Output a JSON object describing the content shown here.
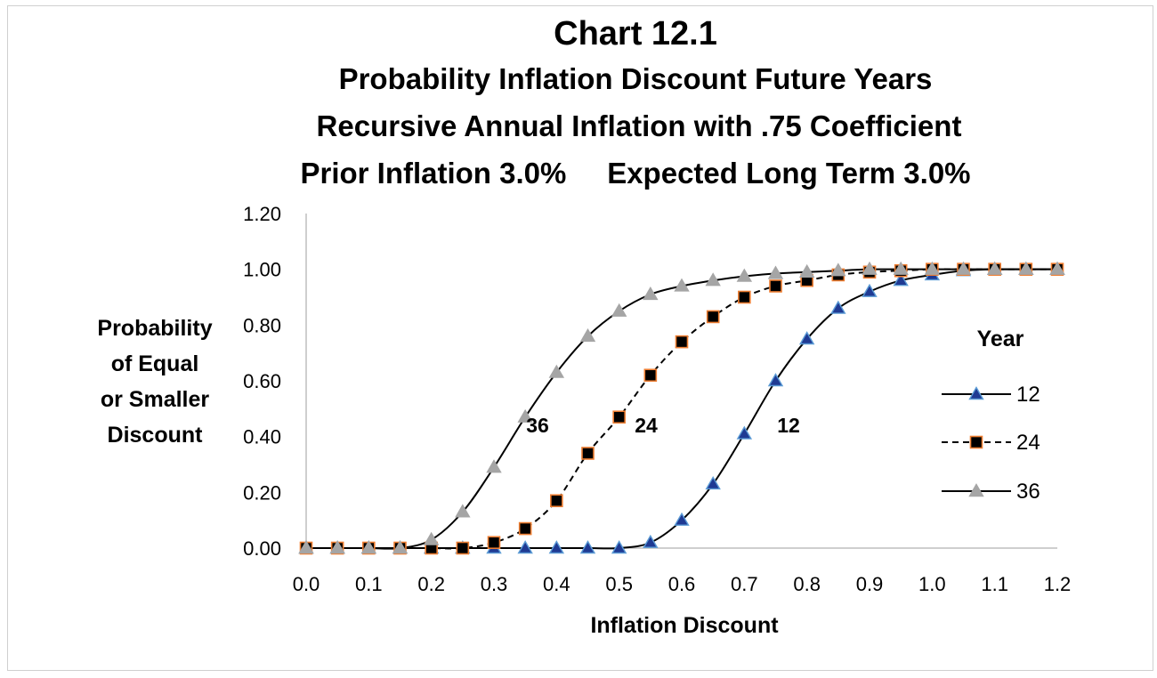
{
  "chart_data": {
    "type": "line",
    "title": "Chart 12.1",
    "subtitle_lines": [
      "Probability Inflation Discount Future Years",
      "Recursive Annual Inflation  with .75 Coefficient",
      "Prior Inflation 3.0%     Expected Long Term 3.0%"
    ],
    "xlabel": "Inflation Discount",
    "ylabel_lines": [
      "Probability",
      "of Equal",
      "or Smaller",
      "Discount"
    ],
    "xlim": [
      0.0,
      1.2
    ],
    "ylim": [
      0.0,
      1.2
    ],
    "x_ticks": [
      "0.0",
      "0.1",
      "0.2",
      "0.3",
      "0.4",
      "0.5",
      "0.6",
      "0.7",
      "0.8",
      "0.9",
      "1.0",
      "1.1",
      "1.2"
    ],
    "y_ticks": [
      "0.00",
      "0.20",
      "0.40",
      "0.60",
      "0.80",
      "1.00",
      "1.20"
    ],
    "grid": false,
    "legend_title": "Year",
    "legend_position": "right",
    "x": [
      0.0,
      0.05,
      0.1,
      0.15,
      0.2,
      0.25,
      0.3,
      0.35,
      0.4,
      0.45,
      0.5,
      0.55,
      0.6,
      0.65,
      0.7,
      0.75,
      0.8,
      0.85,
      0.9,
      0.95,
      1.0,
      1.05,
      1.1,
      1.15,
      1.2
    ],
    "series": [
      {
        "name": "12",
        "label": "12",
        "marker": "triangle",
        "line_style": "solid",
        "marker_fill": "#1f3a93",
        "marker_edge": "#5b9bd5",
        "values": [
          0.0,
          0.0,
          0.0,
          0.0,
          0.0,
          0.0,
          0.0,
          0.0,
          0.0,
          0.0,
          0.0,
          0.02,
          0.1,
          0.23,
          0.41,
          0.6,
          0.75,
          0.86,
          0.92,
          0.96,
          0.98,
          0.995,
          1.0,
          1.0,
          1.0
        ]
      },
      {
        "name": "24",
        "label": "24",
        "marker": "square",
        "line_style": "dashed",
        "marker_fill": "#000000",
        "marker_edge": "#ed7d31",
        "values": [
          0.0,
          0.0,
          0.0,
          0.0,
          0.0,
          0.0,
          0.02,
          0.07,
          0.17,
          0.34,
          0.47,
          0.62,
          0.74,
          0.83,
          0.9,
          0.94,
          0.96,
          0.98,
          0.99,
          0.995,
          1.0,
          1.0,
          1.0,
          1.0,
          1.0
        ]
      },
      {
        "name": "36",
        "label": "36",
        "marker": "triangle",
        "line_style": "solid",
        "marker_fill": "#a5a5a5",
        "marker_edge": "#a5a5a5",
        "values": [
          0.0,
          0.0,
          0.0,
          0.0,
          0.03,
          0.13,
          0.29,
          0.47,
          0.63,
          0.76,
          0.85,
          0.91,
          0.94,
          0.96,
          0.975,
          0.985,
          0.99,
          0.995,
          1.0,
          1.0,
          1.0,
          1.0,
          1.0,
          1.0,
          1.0
        ]
      }
    ]
  }
}
